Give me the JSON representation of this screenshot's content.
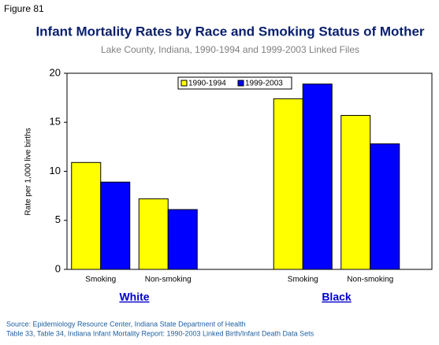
{
  "figure_label": "Figure 81",
  "chart_data": {
    "type": "bar",
    "title": "Infant Mortality Rates by Race and Smoking Status of Mother",
    "subtitle": "Lake County, Indiana, 1990-1994 and 1999-2003 Linked Files",
    "y_label": "Rate per 1,000 live births",
    "categories": [
      "Smoking",
      "Non-smoking",
      null,
      "Smoking",
      "Non-smoking"
    ],
    "group_labels": [
      "White",
      "Black"
    ],
    "series": [
      {
        "name": "1990-1994",
        "color": "#ffff00",
        "values": [
          10.9,
          7.2,
          null,
          17.4,
          15.7
        ]
      },
      {
        "name": "1999-2003",
        "color": "#0000ff",
        "values": [
          8.9,
          6.1,
          null,
          18.9,
          12.8
        ]
      }
    ],
    "ylim": [
      0,
      20
    ],
    "yticks": [
      0,
      5,
      10,
      15,
      20
    ],
    "legend": "top"
  },
  "source": [
    "Source: Epidemiology Resource Center, Indiana State Department of Health",
    "Table 33, Table 34, Indiana Infant Mortality Report: 1990-2003 Linked Birth/Infant Death Data Sets"
  ]
}
